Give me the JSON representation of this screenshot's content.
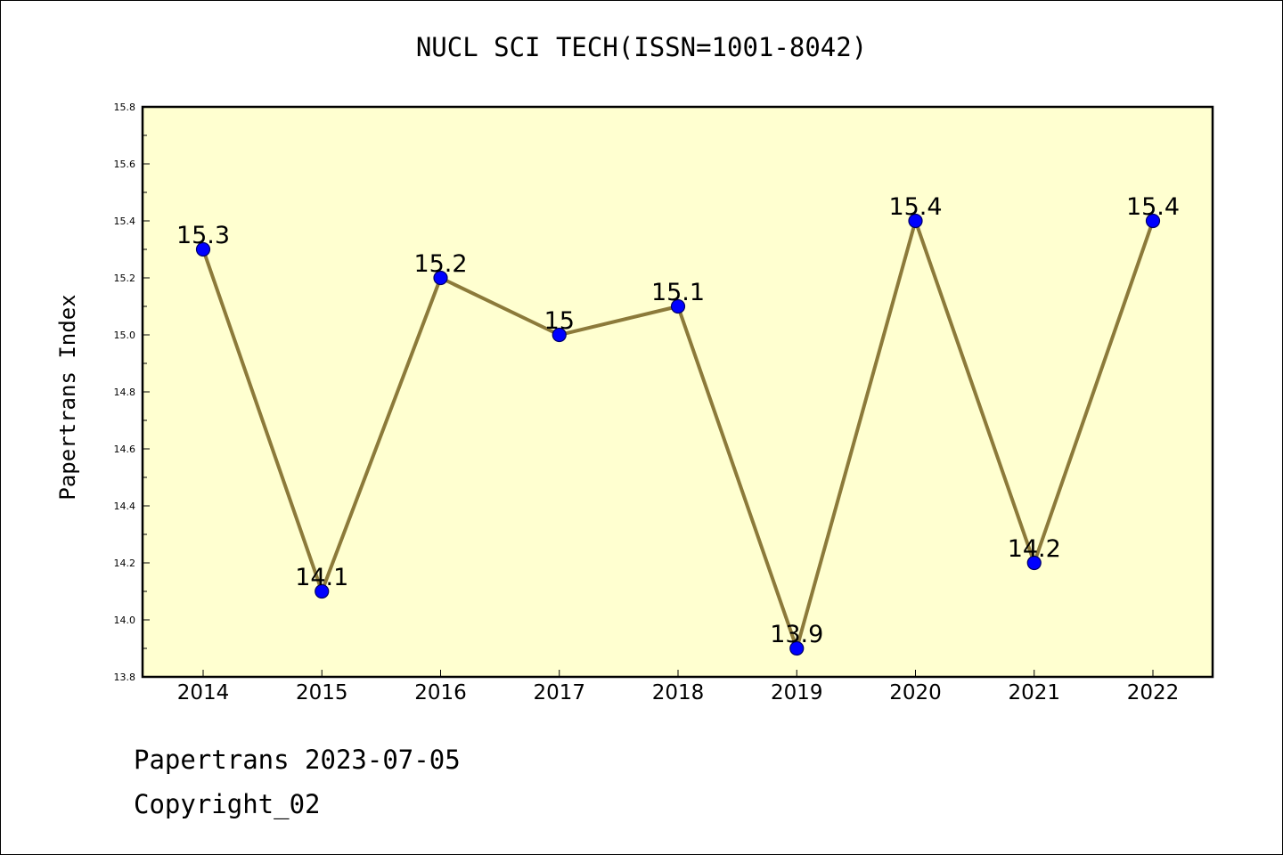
{
  "chart_data": {
    "type": "line",
    "title": "NUCL SCI TECH(ISSN=1001-8042)",
    "xlabel": "",
    "ylabel": "Papertrans Index",
    "categories": [
      "2014",
      "2015",
      "2016",
      "2017",
      "2018",
      "2019",
      "2020",
      "2021",
      "2022"
    ],
    "values": [
      15.3,
      14.1,
      15.2,
      15.0,
      15.1,
      13.9,
      15.4,
      14.2,
      15.4
    ],
    "data_labels": [
      "15.3",
      "14.1",
      "15.2",
      "15",
      "15.1",
      "13.9",
      "15.4",
      "14.2",
      "15.4"
    ],
    "ylim": [
      13.8,
      15.8
    ],
    "yticks": [
      "13.8",
      "14.0",
      "14.2",
      "14.4",
      "14.6",
      "14.8",
      "15.0",
      "15.2",
      "15.4",
      "15.6",
      "15.8"
    ],
    "grid": false,
    "legend": "none",
    "colors": {
      "plot_background": "#ffffd0",
      "line": "#8c7a3a",
      "marker_fill": "#0000ff",
      "marker_edge": "#000066"
    }
  },
  "footer": {
    "line1": "Papertrans 2023-07-05",
    "line2": "Copyright_02"
  }
}
